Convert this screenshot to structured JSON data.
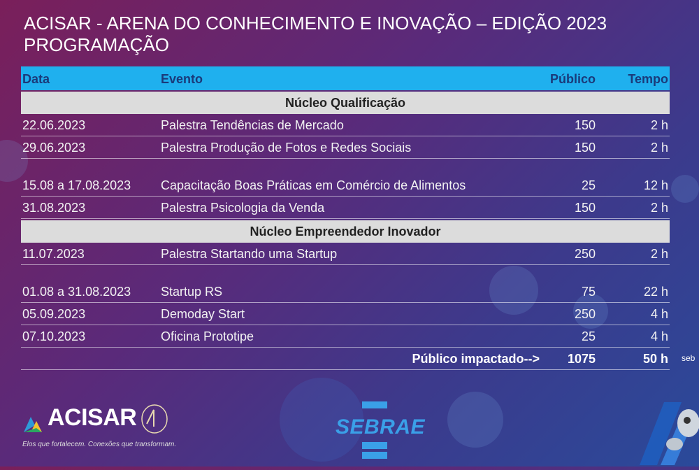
{
  "title": {
    "line1": "ACISAR - ARENA DO CONHECIMENTO E INOVAÇÃO – EDIÇÃO 2023",
    "line2": "PROGRAMAÇÃO"
  },
  "table": {
    "headers": {
      "date": "Data",
      "event": "Evento",
      "public": "Público",
      "time": "Tempo"
    },
    "sections": [
      {
        "name": "Núcleo Qualificação",
        "rows": [
          {
            "date": "22.06.2023",
            "event": "Palestra Tendências de Mercado",
            "public": "150",
            "time": "2 h"
          },
          {
            "date": "29.06.2023",
            "event": "Palestra Produção de Fotos e Redes Sociais",
            "public": "150",
            "time": "2 h"
          },
          {
            "date": "15.08 a 17.08.2023",
            "event": "Capacitação Boas Práticas em Comércio de Alimentos",
            "public": "25",
            "time": "12 h"
          },
          {
            "date": "31.08.2023",
            "event": "Palestra Psicologia da Venda",
            "public": "150",
            "time": "2 h"
          }
        ]
      },
      {
        "name": "Núcleo Empreendedor Inovador",
        "rows": [
          {
            "date": "11.07.2023",
            "event": "Palestra Startando uma Startup",
            "public": "250",
            "time": "2 h"
          },
          {
            "date": "01.08 a 31.08.2023",
            "event": "Startup RS",
            "public": "75",
            "time": "22 h"
          },
          {
            "date": "05.09.2023",
            "event": "Demoday Start",
            "public": "250",
            "time": "4 h"
          },
          {
            "date": "07.10.2023",
            "event": "Oficina Prototipe",
            "public": "25",
            "time": "4 h"
          }
        ]
      }
    ],
    "total": {
      "label": "Público impactado-->",
      "public": "1075",
      "time": "50 h"
    }
  },
  "logos": {
    "acisar_name": "ACISAR",
    "acisar_tagline": "Elos que fortalecem. Conexões que transformam.",
    "sebrae_name": "SEBRAE",
    "robot_text": "seb"
  },
  "colors": {
    "header_bg": "#1fb0ee",
    "header_text": "#1a3a7a",
    "section_bg": "#dcdcdc",
    "sebrae_blue": "#3aa0e8"
  }
}
